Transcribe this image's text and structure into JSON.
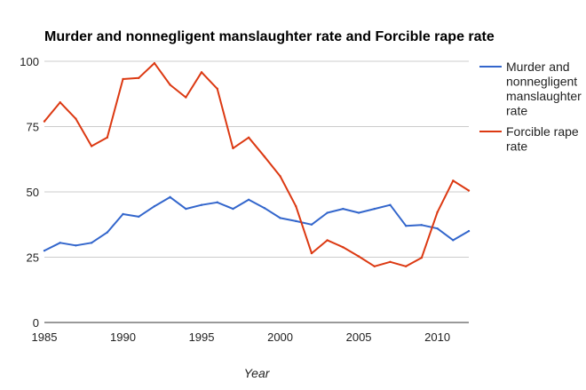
{
  "chart_data": {
    "type": "line",
    "title": "Murder and nonnegligent manslaughter rate and Forcible rape rate",
    "xlabel": "Year",
    "ylabel": "",
    "xlim": [
      1985,
      2012
    ],
    "ylim": [
      0,
      100
    ],
    "x_ticks": [
      1985,
      1990,
      1995,
      2000,
      2005,
      2010
    ],
    "y_ticks": [
      0,
      25,
      50,
      75,
      100
    ],
    "grid": "horizontal",
    "legend_position": "right",
    "x": [
      1985,
      1986,
      1987,
      1988,
      1989,
      1990,
      1991,
      1992,
      1993,
      1994,
      1995,
      1996,
      1997,
      1998,
      1999,
      2000,
      2001,
      2002,
      2003,
      2004,
      2005,
      2006,
      2007,
      2008,
      2009,
      2010,
      2011,
      2012
    ],
    "series": [
      {
        "name": "Murder and nonnegligent manslaughter rate",
        "legend_lines": [
          "Murder and",
          "nonnegligent",
          "manslaughter",
          "rate"
        ],
        "color": "#3366cc",
        "values": [
          27.5,
          30.5,
          29.5,
          30.5,
          34.5,
          41.5,
          40.5,
          44.5,
          48.0,
          43.5,
          45.0,
          46.0,
          43.5,
          47.0,
          43.8,
          40.0,
          38.8,
          37.5,
          42.0,
          43.5,
          42.0,
          43.5,
          45.0,
          37.0,
          37.3,
          36.0,
          31.5,
          35.0
        ]
      },
      {
        "name": "Forcible rape rate",
        "legend_lines": [
          "Forcible rape",
          "rate"
        ],
        "color": "#dc3912",
        "values": [
          77.0,
          84.3,
          78.0,
          67.5,
          70.8,
          93.2,
          93.6,
          99.3,
          91.0,
          86.2,
          95.8,
          89.5,
          66.7,
          70.8,
          63.5,
          56.0,
          44.5,
          26.5,
          31.5,
          28.8,
          25.3,
          21.5,
          23.2,
          21.5,
          24.8,
          42.2,
          54.3,
          50.5
        ]
      }
    ]
  }
}
